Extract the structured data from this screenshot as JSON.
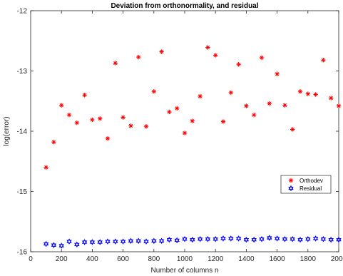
{
  "chart_data": {
    "type": "scatter",
    "title": "Deviation from orthonormality, and residual",
    "xlabel": "Number of columns n",
    "ylabel": "log(error)",
    "xlim": [
      0,
      2000
    ],
    "ylim": [
      -16,
      -12
    ],
    "xticks": [
      0,
      200,
      400,
      600,
      800,
      1000,
      1200,
      1400,
      1600,
      1800,
      2000
    ],
    "yticks": [
      -16,
      -15,
      -14,
      -13,
      -12
    ],
    "xtick_labels": [
      "0",
      "200",
      "400",
      "600",
      "800",
      "1000",
      "1200",
      "1400",
      "1600",
      "1800",
      "2000"
    ],
    "ytick_labels": [
      "-16",
      "-15",
      "-14",
      "-13",
      "-12"
    ],
    "grid": false,
    "legend_position": "center-right",
    "series": [
      {
        "name": "Orthodev",
        "color": "#ff0000",
        "marker": "asterisk",
        "x": [
          100,
          150,
          200,
          250,
          300,
          350,
          400,
          450,
          500,
          550,
          600,
          650,
          700,
          750,
          800,
          850,
          900,
          950,
          1000,
          1050,
          1100,
          1150,
          1200,
          1250,
          1300,
          1350,
          1400,
          1450,
          1500,
          1550,
          1600,
          1650,
          1700,
          1750,
          1800,
          1850,
          1900,
          1950,
          2000
        ],
        "y": [
          -14.6,
          -14.18,
          -13.57,
          -13.73,
          -13.86,
          -13.4,
          -13.81,
          -13.79,
          -14.12,
          -12.87,
          -13.77,
          -13.91,
          -12.77,
          -13.92,
          -13.34,
          -12.68,
          -13.68,
          -13.62,
          -14.03,
          -13.83,
          -13.42,
          -12.61,
          -12.74,
          -13.84,
          -13.36,
          -12.89,
          -13.58,
          -13.73,
          -12.78,
          -13.54,
          -13.05,
          -13.57,
          -13.97,
          -13.34,
          -13.38,
          -13.39,
          -12.82,
          -13.45,
          -13.58
        ]
      },
      {
        "name": "Residual",
        "color": "#0000ff",
        "marker": "hexagram",
        "x": [
          100,
          150,
          200,
          250,
          300,
          350,
          400,
          450,
          500,
          550,
          600,
          650,
          700,
          750,
          800,
          850,
          900,
          950,
          1000,
          1050,
          1100,
          1150,
          1200,
          1250,
          1300,
          1350,
          1400,
          1450,
          1500,
          1550,
          1600,
          1650,
          1700,
          1750,
          1800,
          1850,
          1900,
          1950,
          2000
        ],
        "y": [
          -15.87,
          -15.89,
          -15.9,
          -15.83,
          -15.88,
          -15.84,
          -15.84,
          -15.84,
          -15.83,
          -15.83,
          -15.83,
          -15.82,
          -15.82,
          -15.83,
          -15.82,
          -15.82,
          -15.8,
          -15.81,
          -15.79,
          -15.8,
          -15.79,
          -15.79,
          -15.79,
          -15.78,
          -15.78,
          -15.78,
          -15.8,
          -15.8,
          -15.79,
          -15.77,
          -15.78,
          -15.79,
          -15.79,
          -15.8,
          -15.79,
          -15.78,
          -15.79,
          -15.8,
          -15.8
        ]
      }
    ]
  }
}
